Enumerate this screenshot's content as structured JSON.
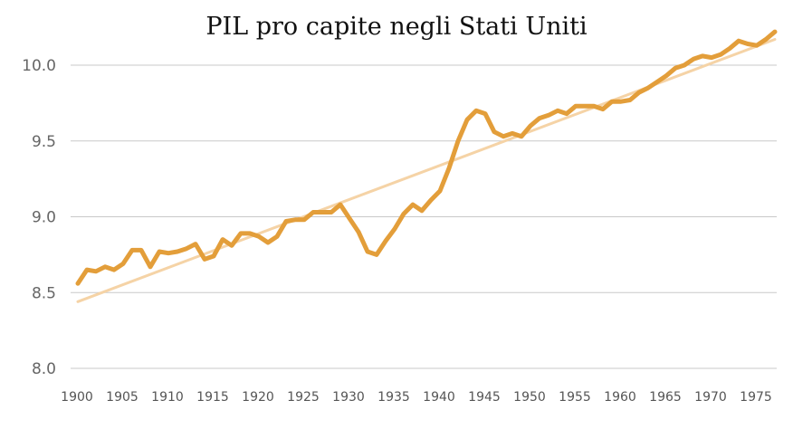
{
  "chart_data": {
    "type": "line",
    "title": "PIL pro capite negli Stati Uniti",
    "xlabel": "",
    "ylabel": "",
    "xlim": [
      1900,
      1977
    ],
    "ylim": [
      8.0,
      10.2
    ],
    "yticks": [
      "8.0",
      "8.5",
      "9.0",
      "9.5",
      "10.0"
    ],
    "xticks": [
      "1900",
      "1905",
      "1910",
      "1915",
      "1920",
      "1925",
      "1930",
      "1935",
      "1940",
      "1945",
      "1950",
      "1955",
      "1960",
      "1965",
      "1970",
      "1975"
    ],
    "grid": "horizontal",
    "series": [
      {
        "color": "#E39E3A",
        "x": [
          1900,
          1901,
          1902,
          1903,
          1904,
          1905,
          1906,
          1907,
          1908,
          1909,
          1910,
          1911,
          1912,
          1913,
          1914,
          1915,
          1916,
          1917,
          1918,
          1919,
          1920,
          1921,
          1922,
          1923,
          1924,
          1925,
          1926,
          1927,
          1928,
          1929,
          1930,
          1931,
          1932,
          1933,
          1934,
          1935,
          1936,
          1937,
          1938,
          1939,
          1940,
          1941,
          1942,
          1943,
          1944,
          1945,
          1946,
          1947,
          1948,
          1949,
          1950,
          1951,
          1952,
          1953,
          1954,
          1955,
          1956,
          1957,
          1958,
          1959,
          1960,
          1961,
          1962,
          1963,
          1964,
          1965,
          1966,
          1967,
          1968,
          1969,
          1970,
          1971,
          1972,
          1973,
          1974,
          1975,
          1976,
          1977
        ],
        "values": [
          8.56,
          8.65,
          8.64,
          8.67,
          8.65,
          8.69,
          8.78,
          8.78,
          8.67,
          8.77,
          8.76,
          8.77,
          8.79,
          8.82,
          8.72,
          8.74,
          8.85,
          8.81,
          8.89,
          8.89,
          8.87,
          8.83,
          8.87,
          8.97,
          8.98,
          8.98,
          9.03,
          9.03,
          9.03,
          9.08,
          8.99,
          8.9,
          8.77,
          8.75,
          8.84,
          8.92,
          9.02,
          9.08,
          9.04,
          9.11,
          9.17,
          9.32,
          9.5,
          9.64,
          9.7,
          9.68,
          9.56,
          9.53,
          9.55,
          9.53,
          9.6,
          9.65,
          9.67,
          9.7,
          9.68,
          9.73,
          9.73,
          9.73,
          9.71,
          9.76,
          9.76,
          9.77,
          9.82,
          9.85,
          9.89,
          9.93,
          9.98,
          10.0,
          10.04,
          10.06,
          10.05,
          10.07,
          10.11,
          10.16,
          10.14,
          10.13,
          10.17,
          10.22
        ]
      },
      {
        "color": "#F5D3A6",
        "x": [
          1900,
          1977
        ],
        "values": [
          8.44,
          10.17
        ]
      }
    ]
  }
}
